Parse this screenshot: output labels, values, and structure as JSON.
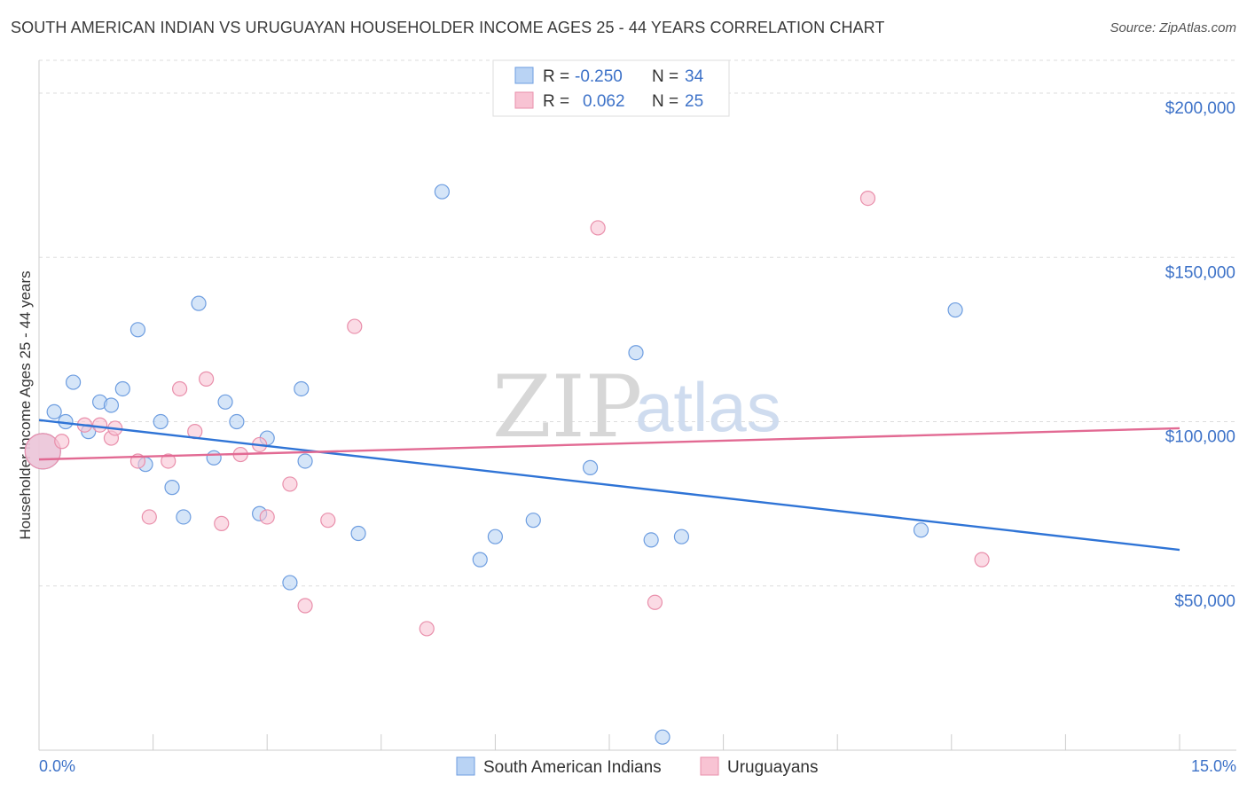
{
  "title": "SOUTH AMERICAN INDIAN VS URUGUAYAN HOUSEHOLDER INCOME AGES 25 - 44 YEARS CORRELATION CHART",
  "source": "Source: ZipAtlas.com",
  "watermark": {
    "zip": "ZIP",
    "atlas": "atlas"
  },
  "colors": {
    "blue_fill": "#b9d3f4",
    "blue_stroke": "#6d9de0",
    "blue_line": "#2f74d6",
    "pink_fill": "#f8c3d3",
    "pink_stroke": "#e98fab",
    "pink_line": "#e26a93",
    "tick_text": "#3d72c8",
    "grid": "#dddddd"
  },
  "legend_top": {
    "rows": [
      {
        "r_label": "R =",
        "r_value": "-0.250",
        "n_label": "N =",
        "n_value": "34"
      },
      {
        "r_label": "R =",
        "r_value": "0.062",
        "n_label": "N =",
        "n_value": "25"
      }
    ]
  },
  "legend_bottom": {
    "items": [
      {
        "label": "South American Indians"
      },
      {
        "label": "Uruguayans"
      }
    ]
  },
  "chart_data": {
    "type": "scatter",
    "title": "SOUTH AMERICAN INDIAN VS URUGUAYAN HOUSEHOLDER INCOME AGES 25 - 44 YEARS CORRELATION CHART",
    "xlabel": "",
    "ylabel": "Householder Income Ages 25 - 44 years",
    "xlim": [
      0,
      15
    ],
    "ylim": [
      0,
      210000
    ],
    "x_tick_labels": [
      "0.0%",
      "15.0%"
    ],
    "y_ticks": [
      50000,
      100000,
      150000,
      200000
    ],
    "y_tick_labels": [
      "$50,000",
      "$100,000",
      "$150,000",
      "$200,000"
    ],
    "grid": true,
    "series": [
      {
        "name": "South American Indians",
        "r": -0.25,
        "n": 34,
        "trend": {
          "x": [
            0,
            15
          ],
          "y": [
            100500,
            61000
          ]
        },
        "points": [
          {
            "x": 0.05,
            "y": 91000,
            "big": true
          },
          {
            "x": 0.2,
            "y": 103000
          },
          {
            "x": 0.35,
            "y": 100000
          },
          {
            "x": 0.45,
            "y": 112000
          },
          {
            "x": 0.65,
            "y": 97000
          },
          {
            "x": 0.8,
            "y": 106000
          },
          {
            "x": 0.95,
            "y": 105000
          },
          {
            "x": 1.1,
            "y": 110000
          },
          {
            "x": 1.3,
            "y": 128000
          },
          {
            "x": 1.4,
            "y": 87000
          },
          {
            "x": 1.6,
            "y": 100000
          },
          {
            "x": 1.75,
            "y": 80000
          },
          {
            "x": 1.9,
            "y": 71000
          },
          {
            "x": 2.1,
            "y": 136000
          },
          {
            "x": 2.3,
            "y": 89000
          },
          {
            "x": 2.45,
            "y": 106000
          },
          {
            "x": 2.6,
            "y": 100000
          },
          {
            "x": 2.9,
            "y": 72000
          },
          {
            "x": 3.0,
            "y": 95000
          },
          {
            "x": 3.3,
            "y": 51000
          },
          {
            "x": 3.45,
            "y": 110000
          },
          {
            "x": 3.5,
            "y": 88000
          },
          {
            "x": 4.2,
            "y": 66000
          },
          {
            "x": 5.3,
            "y": 170000
          },
          {
            "x": 5.8,
            "y": 58000
          },
          {
            "x": 6.0,
            "y": 65000
          },
          {
            "x": 6.5,
            "y": 70000
          },
          {
            "x": 7.25,
            "y": 86000
          },
          {
            "x": 7.85,
            "y": 121000
          },
          {
            "x": 8.05,
            "y": 64000
          },
          {
            "x": 8.2,
            "y": 4000
          },
          {
            "x": 8.45,
            "y": 65000
          },
          {
            "x": 11.6,
            "y": 67000
          },
          {
            "x": 12.05,
            "y": 134000
          }
        ]
      },
      {
        "name": "Uruguayans",
        "r": 0.062,
        "n": 25,
        "trend": {
          "x": [
            0,
            15
          ],
          "y": [
            88500,
            98000
          ]
        },
        "points": [
          {
            "x": 0.05,
            "y": 91000,
            "big": true
          },
          {
            "x": 0.3,
            "y": 94000
          },
          {
            "x": 0.6,
            "y": 99000
          },
          {
            "x": 0.8,
            "y": 99000
          },
          {
            "x": 0.95,
            "y": 95000
          },
          {
            "x": 1.0,
            "y": 98000
          },
          {
            "x": 1.3,
            "y": 88000
          },
          {
            "x": 1.45,
            "y": 71000
          },
          {
            "x": 1.7,
            "y": 88000
          },
          {
            "x": 1.85,
            "y": 110000
          },
          {
            "x": 2.05,
            "y": 97000
          },
          {
            "x": 2.2,
            "y": 113000
          },
          {
            "x": 2.4,
            "y": 69000
          },
          {
            "x": 2.65,
            "y": 90000
          },
          {
            "x": 2.9,
            "y": 93000
          },
          {
            "x": 3.0,
            "y": 71000
          },
          {
            "x": 3.3,
            "y": 81000
          },
          {
            "x": 3.5,
            "y": 44000
          },
          {
            "x": 3.8,
            "y": 70000
          },
          {
            "x": 4.15,
            "y": 129000
          },
          {
            "x": 5.1,
            "y": 37000
          },
          {
            "x": 7.35,
            "y": 159000
          },
          {
            "x": 8.1,
            "y": 45000
          },
          {
            "x": 10.9,
            "y": 168000
          },
          {
            "x": 12.4,
            "y": 58000
          }
        ]
      }
    ]
  }
}
